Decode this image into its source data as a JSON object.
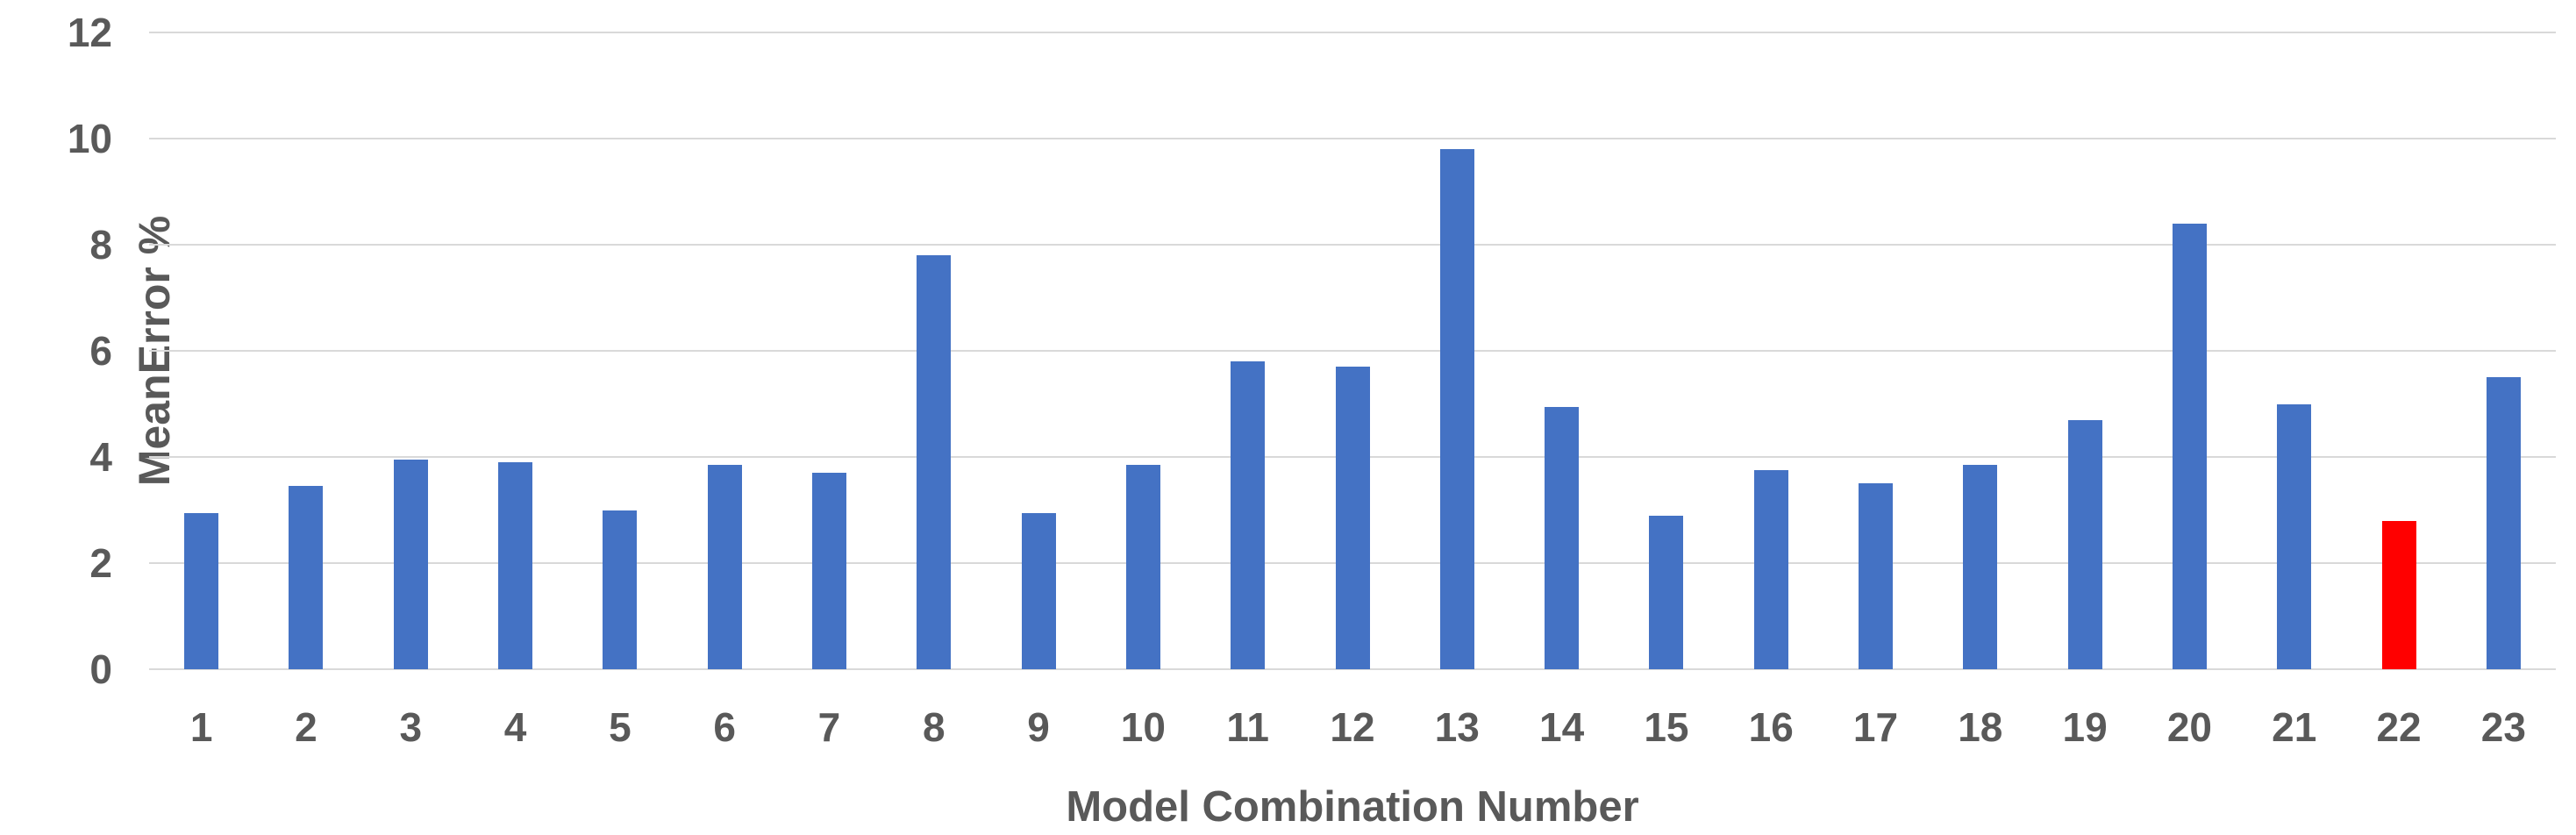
{
  "chart_data": {
    "type": "bar",
    "title": "",
    "xlabel": "Model Combination Number",
    "ylabel": "MeanError %",
    "categories": [
      "1",
      "2",
      "3",
      "4",
      "5",
      "6",
      "7",
      "8",
      "9",
      "10",
      "11",
      "12",
      "13",
      "14",
      "15",
      "16",
      "17",
      "18",
      "19",
      "20",
      "21",
      "22",
      "23"
    ],
    "values": [
      2.95,
      3.45,
      3.95,
      3.9,
      3.0,
      3.85,
      3.7,
      7.8,
      2.95,
      3.85,
      5.8,
      5.7,
      9.8,
      4.95,
      2.9,
      3.75,
      3.5,
      3.85,
      4.7,
      8.4,
      5.0,
      2.8,
      5.5
    ],
    "highlighted_category": "22",
    "ylim": [
      0,
      12
    ],
    "yticks": [
      0,
      2,
      4,
      6,
      8,
      10,
      12
    ],
    "grid": "horizontal",
    "legend_position": "none",
    "colors": {
      "bar": "#4472C4",
      "highlight": "#FF0000",
      "gridline": "#D9D9D9",
      "axis_text": "#595959",
      "background": "#FFFFFF"
    }
  }
}
